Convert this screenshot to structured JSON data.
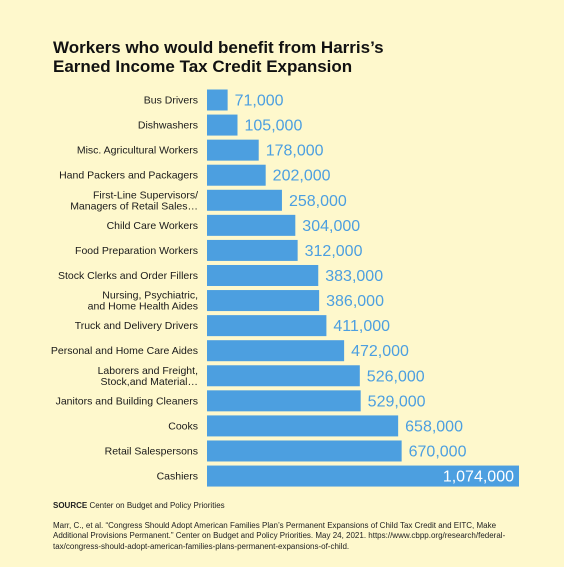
{
  "title_lines": [
    "Workers who would benefit from Harris’s",
    "Earned Income Tax Credit Expansion"
  ],
  "colors": {
    "background": "#FEF8CC",
    "bar": "#4C9FE0",
    "value_text": "#4C9FE0",
    "value_text_inside": "#FFFFFF"
  },
  "chart_data": {
    "type": "bar",
    "orientation": "horizontal",
    "title": "Workers who would benefit from Harris’s Earned Income Tax Credit Expansion",
    "categories": [
      "Bus Drivers",
      "Dishwashers",
      "Misc. Agricultural Workers",
      "Hand Packers and Packagers",
      "First-Line Supervisors/\nManagers of Retail Sales…",
      "Child Care Workers",
      "Food Preparation Workers",
      "Stock Clerks and Order Fillers",
      "Nursing, Psychiatric,\nand Home Health Aides",
      "Truck and Delivery Drivers",
      "Personal and Home Care Aides",
      "Laborers and Freight,\nStock,and Material…",
      "Janitors and Building Cleaners",
      "Cooks",
      "Retail Salespersons",
      "Cashiers"
    ],
    "values": [
      71000,
      105000,
      178000,
      202000,
      258000,
      304000,
      312000,
      383000,
      386000,
      411000,
      472000,
      526000,
      529000,
      658000,
      670000,
      1074000
    ],
    "value_labels": [
      "71,000",
      "105,000",
      "178,000",
      "202,000",
      "258,000",
      "304,000",
      "312,000",
      "383,000",
      "386,000",
      "411,000",
      "472,000",
      "526,000",
      "529,000",
      "658,000",
      "670,000",
      "1,074,000"
    ],
    "xlim": [
      0,
      1074000
    ],
    "grid": false,
    "legend": "none"
  },
  "footer": {
    "source_tag": "SOURCE",
    "source_text": " Center on Budget and Policy Priorities",
    "citation": "Marr, C., et al. “Congress Should Adopt American Families Plan’s Permanent Expansions of Child Tax Credit and EITC, Make Additional Provisions Permanent.” Center on Budget and Policy Priorities. May 24, 2021. https://www.cbpp.org/research/federal-tax/congress-should-adopt-american-families-plans-permanent-expansions-of-child."
  }
}
